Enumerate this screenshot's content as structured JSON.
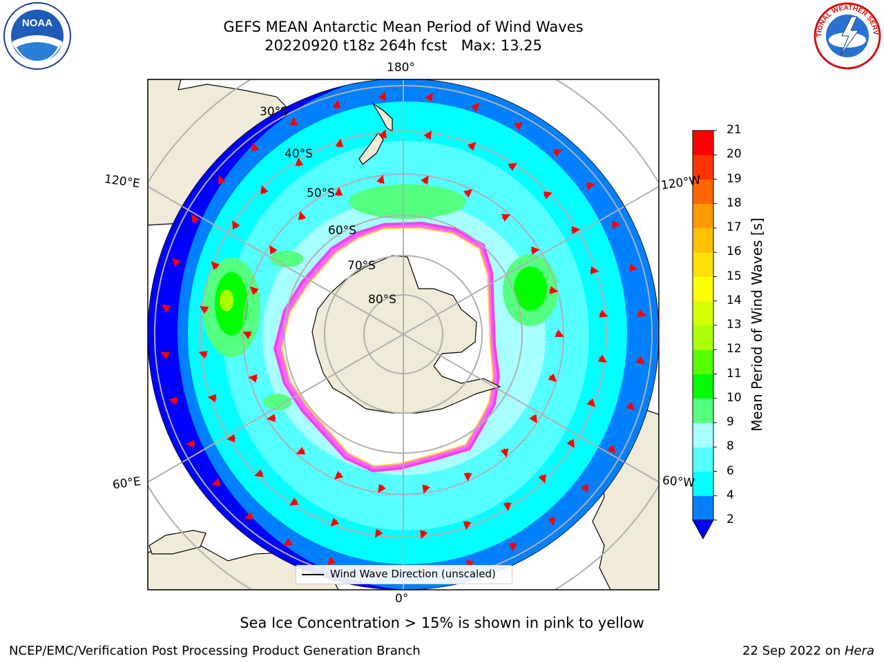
{
  "title": {
    "line1": "GEFS MEAN Antarctic Mean Period of Wind Waves",
    "line2": "20220920 t18z 264h fcst   Max: 13.25"
  },
  "map": {
    "projection": "south-polar-stereographic",
    "gridlines": {
      "longitude_labels": {
        "top": "180°",
        "upper_left": "120°E",
        "upper_right": "120°W",
        "lower_left": "60°E",
        "lower_right": "60°W",
        "bottom": "0°"
      },
      "latitude_labels": [
        "30°S",
        "40°S",
        "50°S",
        "60°S",
        "70°S",
        "80°S"
      ]
    },
    "legend": {
      "entry": "Wind Wave Direction (unscaled)"
    }
  },
  "colorbar": {
    "label": "Mean Period of Wind Waves [s]",
    "tick_labels": [
      "2",
      "4",
      "6",
      "8",
      "9",
      "10",
      "11",
      "12",
      "13",
      "14",
      "15",
      "16",
      "17",
      "18",
      "19",
      "20",
      "21"
    ],
    "colors": [
      "#0000ff",
      "#0080ff",
      "#00ffff",
      "#55ffff",
      "#a8ffff",
      "#55ff80",
      "#00ff00",
      "#55ff00",
      "#aaff00",
      "#d4ff00",
      "#ffff00",
      "#ffe000",
      "#ffc000",
      "#ff9900",
      "#ff6600",
      "#ff3300",
      "#ff0000"
    ],
    "extend": "min"
  },
  "subcaption": "Sea Ice Concentration > 15% is shown in pink to yellow",
  "footer": {
    "left": "NCEP/EMC/Verification Post Processing Product Generation Branch",
    "right_prefix": "22 Sep 2022 on ",
    "right_machine": "Hera"
  },
  "logos": {
    "noaa": {
      "text": "NOAA"
    },
    "nws": {
      "text": "NATIONAL WEATHER SERVICE"
    }
  }
}
